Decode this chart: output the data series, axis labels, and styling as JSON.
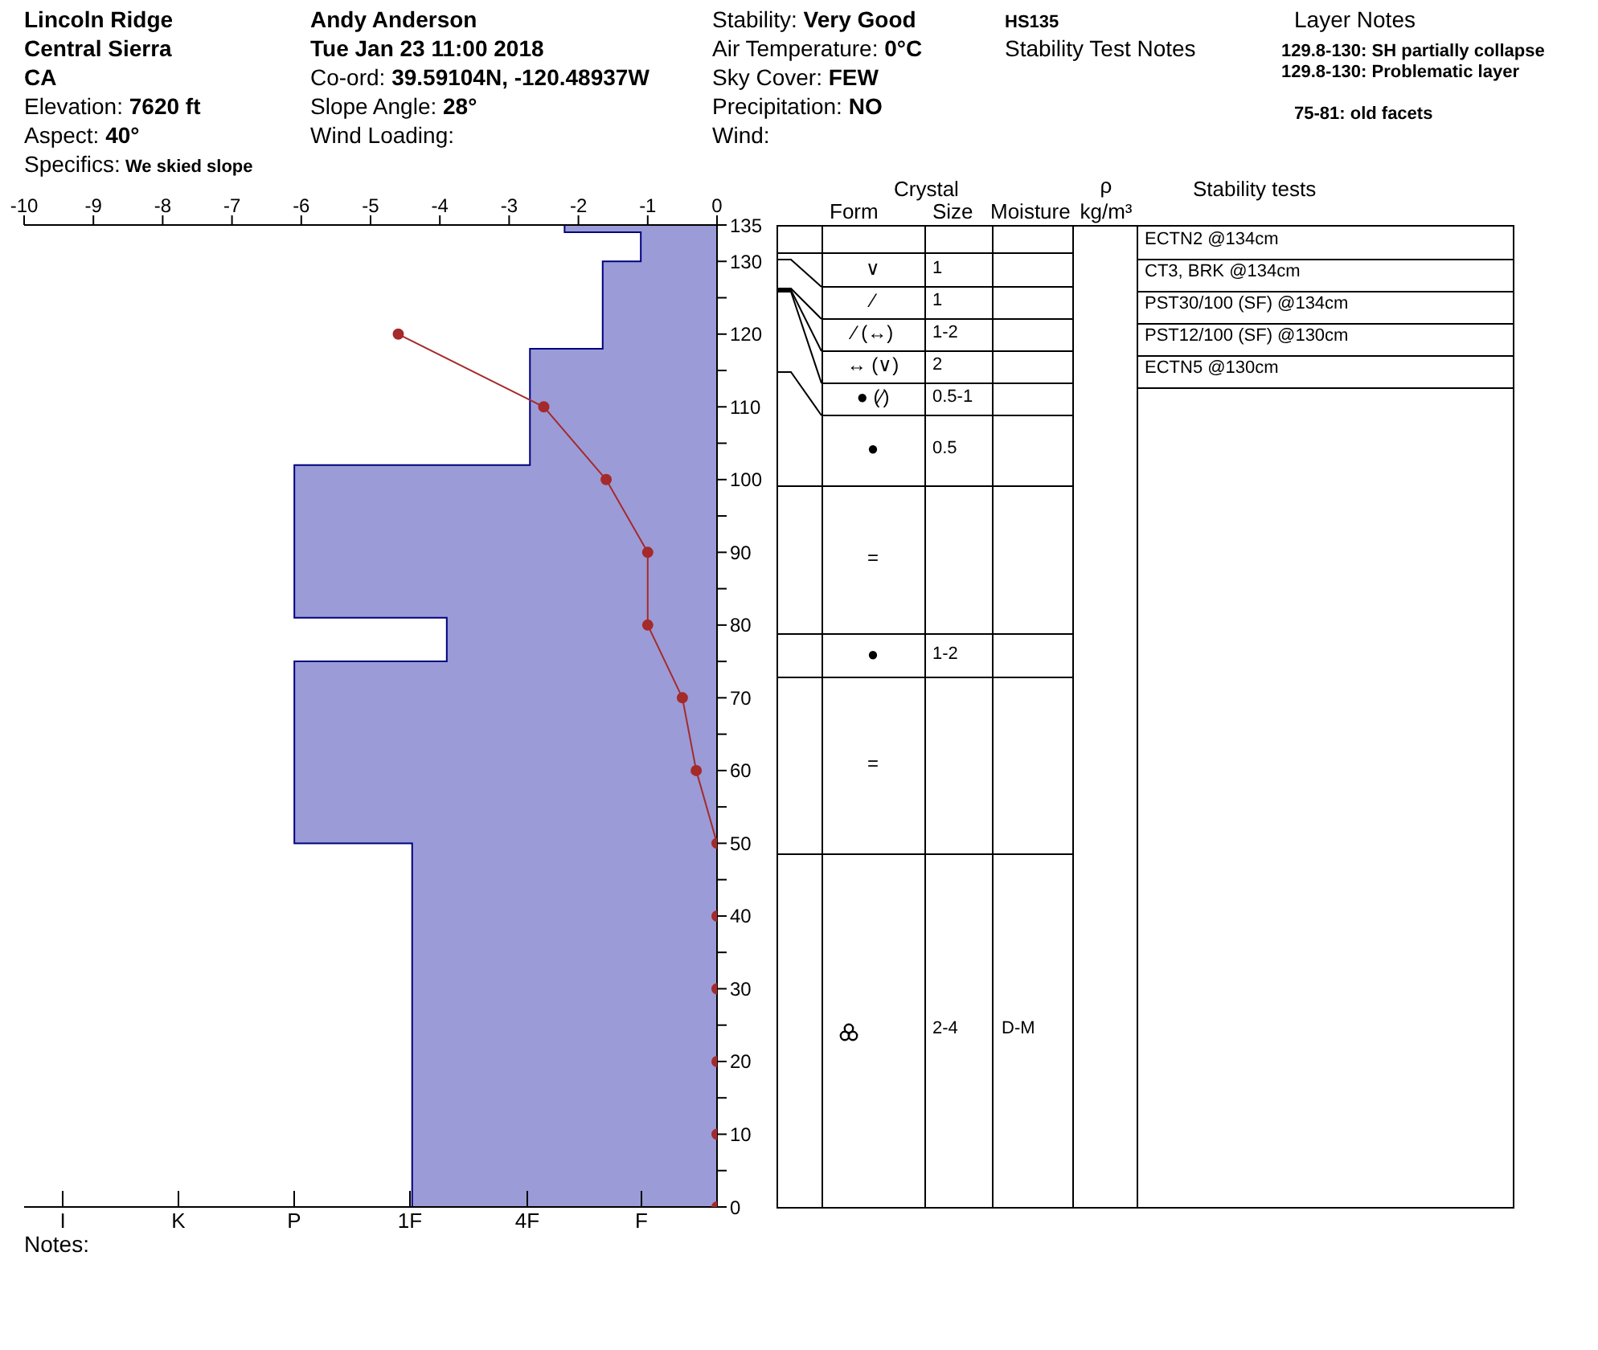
{
  "chart_data": [
    {
      "type": "area",
      "orientation": "horizontal",
      "xlim": [
        -10,
        0
      ],
      "xticks": [
        -10,
        -9,
        -8,
        -7,
        -6,
        -5,
        -4,
        -3,
        -2,
        -1,
        0
      ],
      "ylim": [
        0,
        135
      ],
      "yticks": [
        0,
        {
          "value": 5,
          "label": null
        },
        10,
        {
          "value": 15,
          "label": null
        },
        20,
        {
          "value": 25,
          "label": null
        },
        30,
        {
          "value": 35,
          "label": null
        },
        40,
        {
          "value": 45,
          "label": null
        },
        50,
        {
          "value": 55,
          "label": null
        },
        60,
        {
          "value": 65,
          "label": null
        },
        70,
        {
          "value": 75,
          "label": null
        },
        80,
        {
          "value": 85,
          "label": null
        },
        90,
        {
          "value": 95,
          "label": null
        },
        100,
        {
          "value": 105,
          "label": null
        },
        110,
        {
          "value": 115,
          "label": null
        },
        120,
        {
          "value": 125,
          "label": null
        },
        130,
        135
      ],
      "series": [
        {
          "type": "area",
          "color": "#9b9bd7",
          "x": [
            135,
            134,
            134,
            130,
            130,
            118,
            118,
            102,
            102,
            81,
            81,
            75,
            75,
            50,
            50,
            0
          ],
          "values": [
            -2.2,
            -2.2,
            -1.1,
            -1.1,
            -1.65,
            -1.65,
            -2.7,
            -2.7,
            -6.1,
            -6.1,
            -3.9,
            -3.9,
            -6.1,
            -6.1,
            -4.4,
            -4.4
          ]
        },
        {
          "type": "line",
          "marker": "circle",
          "color": "#a52a2a",
          "x": [
            120,
            110,
            100,
            90,
            80,
            70,
            60,
            50,
            40,
            30,
            20,
            10,
            0
          ],
          "values": [
            -4.6,
            -2.5,
            -1.6,
            -1.0,
            -1.0,
            -0.5,
            -0.3,
            0,
            0,
            0,
            0,
            0,
            0
          ]
        }
      ],
      "annotations": [
        "Lincoln Ridge",
        "Central Sierra",
        "CA",
        "Elevation: 7620 ft",
        "Aspect: 40°",
        "Specifics: We skied slope",
        "Andy Anderson",
        "Tue Jan 23 11:00 2018",
        "Co-ord: 39.59104N, -120.48937W",
        "Slope Angle: 28°",
        "Wind Loading:",
        "Stability: Very Good",
        "Air Temperature: 0°C",
        "Sky Cover: FEW",
        "Precipitation: NO",
        "Wind:",
        "HS135",
        "Stability Test Notes",
        "Layer Notes",
        "129.8-130: SH partially collapse",
        "129.8-130: Problematic layer",
        "75-81: old facets",
        "Notes:",
        "I",
        "K",
        "P",
        "1F",
        "4F",
        "F"
      ]
    },
    {
      "type": "other",
      "categories": [
        "Form",
        "Size",
        "Moisture",
        "ρ kg/m³",
        "Stability tests"
      ],
      "cell_labels": [
        [
          "∨",
          "1",
          null
        ],
        [
          "⁄",
          "1",
          null
        ],
        [
          "⁄ (↔)",
          "1-2",
          null
        ],
        [
          "↔ (∨)",
          "2",
          null
        ],
        [
          "● (⁄)",
          "0.5-1",
          null
        ],
        [
          "●",
          "0.5",
          null
        ],
        [
          "=",
          null,
          null
        ],
        [
          "●",
          "1-2",
          null
        ],
        [
          "=",
          null,
          null
        ],
        [
          null,
          "2-4",
          "D-M"
        ]
      ],
      "annotations": [
        "Crystal",
        "ECTN2 @134cm",
        "CT3, BRK @134cm",
        "PST30/100 (SF) @134cm",
        "PST12/100 (SF) @130cm",
        "ECTN5 @130cm"
      ]
    }
  ]
}
